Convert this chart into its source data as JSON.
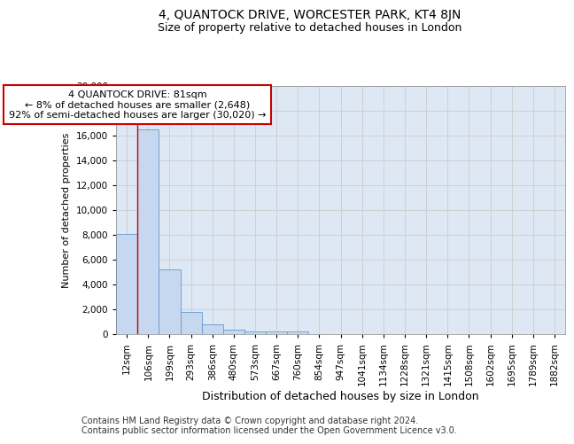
{
  "title_line1": "4, QUANTOCK DRIVE, WORCESTER PARK, KT4 8JN",
  "title_line2": "Size of property relative to detached houses in London",
  "xlabel": "Distribution of detached houses by size in London",
  "ylabel": "Number of detached properties",
  "categories": [
    "12sqm",
    "106sqm",
    "199sqm",
    "293sqm",
    "386sqm",
    "480sqm",
    "573sqm",
    "667sqm",
    "760sqm",
    "854sqm",
    "947sqm",
    "1041sqm",
    "1134sqm",
    "1228sqm",
    "1321sqm",
    "1415sqm",
    "1508sqm",
    "1602sqm",
    "1695sqm",
    "1789sqm",
    "1882sqm"
  ],
  "values": [
    8100,
    16500,
    5200,
    1800,
    800,
    350,
    200,
    200,
    200,
    0,
    0,
    0,
    0,
    0,
    0,
    0,
    0,
    0,
    0,
    0,
    0
  ],
  "bar_color": "#c5d8f0",
  "bar_edge_color": "#6699cc",
  "vline_color": "#cc0000",
  "vline_x": 0.5,
  "annotation_text": "4 QUANTOCK DRIVE: 81sqm\n← 8% of detached houses are smaller (2,648)\n92% of semi-detached houses are larger (30,020) →",
  "annotation_box_color": "#ffffff",
  "annotation_box_edge": "#cc0000",
  "ylim": [
    0,
    20000
  ],
  "yticks": [
    0,
    2000,
    4000,
    6000,
    8000,
    10000,
    12000,
    14000,
    16000,
    18000,
    20000
  ],
  "grid_color": "#cccccc",
  "background_color": "#dde8f4",
  "footer_line1": "Contains HM Land Registry data © Crown copyright and database right 2024.",
  "footer_line2": "Contains public sector information licensed under the Open Government Licence v3.0.",
  "title1_fontsize": 10,
  "title2_fontsize": 9,
  "xlabel_fontsize": 9,
  "ylabel_fontsize": 8,
  "tick_fontsize": 7.5,
  "annot_fontsize": 8,
  "footer_fontsize": 7
}
